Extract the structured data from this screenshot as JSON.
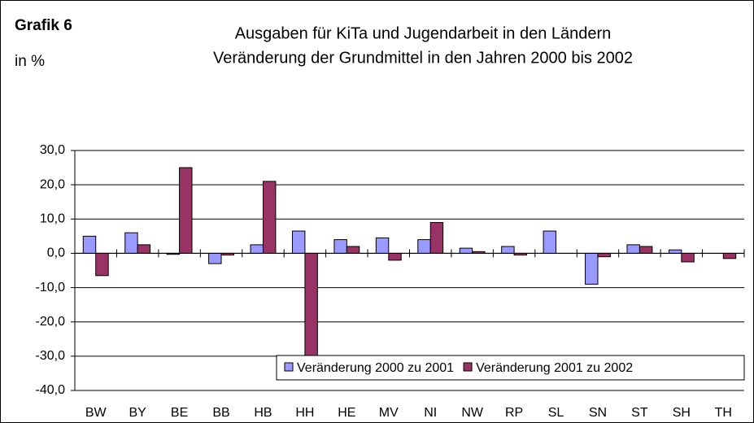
{
  "chart_data": {
    "type": "bar",
    "label": "Grafik 6",
    "unit_label": "in %",
    "title": "Ausgaben für KiTa und Jugendarbeit in den Ländern",
    "subtitle": "Veränderung der Grundmittel in den Jahren 2000 bis 2002",
    "categories": [
      "BW",
      "BY",
      "BE",
      "BB",
      "HB",
      "HH",
      "HE",
      "MV",
      "NI",
      "NW",
      "RP",
      "SL",
      "SN",
      "ST",
      "SH",
      "TH"
    ],
    "series": [
      {
        "name": "Veränderung 2000 zu 2001",
        "color": "#9999ff",
        "values": [
          5,
          6,
          -0.3,
          -3,
          2.5,
          6.5,
          4,
          4.5,
          4,
          1.5,
          2,
          6.5,
          -9,
          2.5,
          1,
          0
        ]
      },
      {
        "name": "Veränderung 2001 zu 2002",
        "color": "#993366",
        "values": [
          -6.5,
          2.5,
          25,
          -0.5,
          21,
          -30,
          2,
          -2,
          9,
          0.5,
          -0.5,
          0,
          -1,
          2,
          -2.5,
          -1.5
        ]
      }
    ],
    "ylim": [
      -40,
      30
    ],
    "yticks": [
      {
        "value": 30,
        "label": "30,0"
      },
      {
        "value": 20,
        "label": "20,0"
      },
      {
        "value": 10,
        "label": "10,0"
      },
      {
        "value": 0,
        "label": "0,0"
      },
      {
        "value": -10,
        "label": "-10,0"
      },
      {
        "value": -20,
        "label": "-20,0"
      },
      {
        "value": -30,
        "label": "-30,0"
      },
      {
        "value": -40,
        "label": "-40,0"
      }
    ],
    "grid": true,
    "legend": "bottom-right"
  }
}
